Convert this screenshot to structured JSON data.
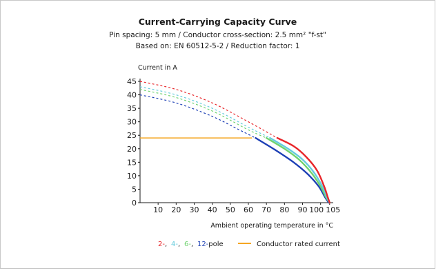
{
  "header": {
    "title": "Current-Carrying Capacity Curve",
    "subtitle1": "Pin spacing: 5 mm / Conductor cross-section: 2.5 mm² \"f-st\"",
    "subtitle2": "Based on: EN 60512-5-2 / Reduction factor: 1"
  },
  "chart_data": {
    "type": "line",
    "ylabel": "Current in A",
    "xlabel": "Ambient operating temperature in °C",
    "xlim": [
      0,
      107
    ],
    "ylim": [
      0,
      45
    ],
    "x_ticks": [
      "10",
      "20",
      "30",
      "40",
      "50",
      "60",
      "70",
      "80",
      "90",
      "100",
      "105"
    ],
    "y_ticks": [
      "0",
      "5",
      "10",
      "15",
      "20",
      "25",
      "30",
      "35",
      "40",
      "45"
    ],
    "grid": false,
    "legend_position": "bottom",
    "series": [
      {
        "name": "2-",
        "color": "#e8262a",
        "dashed": [
          [
            0,
            45
          ],
          [
            20,
            42
          ],
          [
            40,
            37
          ],
          [
            60,
            30
          ],
          [
            76,
            24
          ]
        ],
        "solid": [
          [
            76,
            24
          ],
          [
            85,
            21
          ],
          [
            92,
            17
          ],
          [
            98,
            12
          ],
          [
            102,
            6
          ],
          [
            104,
            2
          ],
          [
            105,
            0
          ]
        ]
      },
      {
        "name": "4-",
        "color": "#66ccdd",
        "dashed": [
          [
            0,
            43
          ],
          [
            20,
            40
          ],
          [
            40,
            35
          ],
          [
            60,
            28
          ],
          [
            72,
            24
          ]
        ],
        "solid": [
          [
            72,
            24
          ],
          [
            82,
            20
          ],
          [
            90,
            16
          ],
          [
            96,
            11.5
          ],
          [
            101,
            6
          ],
          [
            103.5,
            2
          ],
          [
            105,
            0
          ]
        ]
      },
      {
        "name": "6-",
        "color": "#6fd36f",
        "dashed": [
          [
            0,
            42
          ],
          [
            20,
            39
          ],
          [
            40,
            34
          ],
          [
            60,
            27
          ],
          [
            70,
            24
          ]
        ],
        "solid": [
          [
            70,
            24
          ],
          [
            80,
            20
          ],
          [
            88,
            16
          ],
          [
            95,
            11
          ],
          [
            100,
            6
          ],
          [
            103,
            2
          ],
          [
            105,
            0
          ]
        ]
      },
      {
        "name": "12-",
        "color": "#1c3fb5",
        "dashed": [
          [
            0,
            40
          ],
          [
            20,
            37
          ],
          [
            40,
            32
          ],
          [
            55,
            27
          ],
          [
            64,
            24
          ]
        ],
        "solid": [
          [
            64,
            24
          ],
          [
            75,
            19.5
          ],
          [
            85,
            15
          ],
          [
            93,
            10.5
          ],
          [
            99,
            6
          ],
          [
            102.5,
            2
          ],
          [
            104.5,
            0
          ]
        ]
      }
    ],
    "rated_current": {
      "name": "Conductor rated current",
      "color": "#f5a623",
      "value": 24,
      "x_end": 62
    },
    "legend": {
      "pole_suffix": "pole",
      "separator": ",",
      "rated_label": "Conductor rated current"
    }
  }
}
